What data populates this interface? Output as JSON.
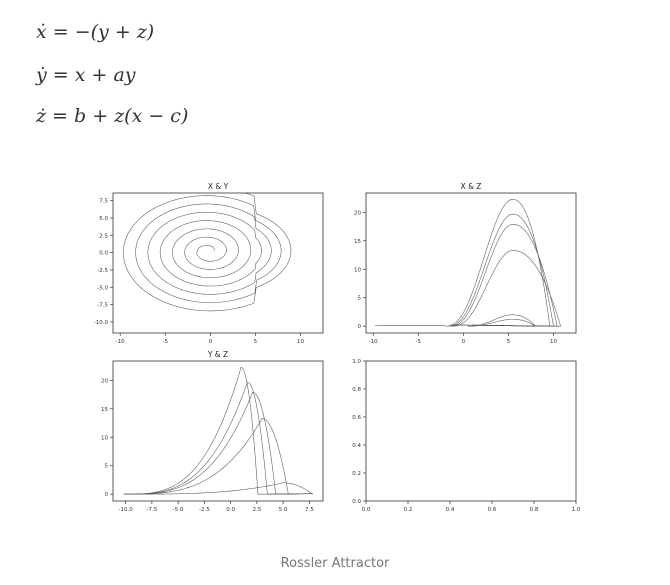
{
  "equations": [
    "ẋ = −(y + z)",
    "ẏ = x + ay",
    "ż = b + z(x − c)"
  ],
  "caption": "Rossler Attractor",
  "chart_data": [
    {
      "type": "line",
      "title": "X & Y",
      "xlim": [
        -10.8,
        12.5
      ],
      "ylim": [
        -11.6,
        8.6
      ],
      "xticks": [
        -10,
        -5,
        0,
        5,
        10
      ],
      "xtick_labels": [
        "-10",
        "-5",
        "0",
        "5",
        "10"
      ],
      "yticks": [
        7.5,
        5.0,
        2.5,
        0.0,
        -2.5,
        -5.0,
        -7.5,
        -10.0
      ],
      "ytick_labels": [
        "7.5",
        "5.0",
        "2.5",
        "0.0",
        "-2.5",
        "-5.0",
        "-7.5",
        "-10.0"
      ],
      "series": [
        {
          "pattern": "spiral",
          "x_range": [
            -9.5,
            11.7
          ],
          "y_range": [
            -10.4,
            7.3
          ]
        }
      ]
    },
    {
      "type": "line",
      "title": "X & Z",
      "xlim": [
        -10.8,
        12.5
      ],
      "ylim": [
        -1.2,
        23.4
      ],
      "xticks": [
        -10,
        -5,
        0,
        5,
        10
      ],
      "xtick_labels": [
        "-10",
        "-5",
        "0",
        "5",
        "10"
      ],
      "yticks": [
        0,
        5,
        10,
        15,
        20
      ],
      "ytick_labels": [
        "0",
        "5",
        "10",
        "15",
        "20"
      ],
      "series": [
        {
          "pattern": "loops",
          "peaks": [
            22.3,
            19.7,
            17.9,
            13.3,
            2.0,
            1.2
          ]
        }
      ]
    },
    {
      "type": "line",
      "title": "Y & Z",
      "xlim": [
        -11.2,
        8.8
      ],
      "ylim": [
        -1.2,
        23.4
      ],
      "xticks": [
        -10,
        -7.5,
        -5,
        -2.5,
        0,
        2.5,
        5,
        7.5
      ],
      "xtick_labels": [
        "-10.0",
        "-7.5",
        "-5.0",
        "-2.5",
        "0.0",
        "2.5",
        "5.0",
        "7.5"
      ],
      "yticks": [
        0,
        5,
        10,
        15,
        20
      ],
      "ytick_labels": [
        "0",
        "5",
        "10",
        "15",
        "20"
      ],
      "series": [
        {
          "pattern": "peaks",
          "peaks": [
            [
              1.0,
              22.3
            ],
            [
              1.6,
              19.7
            ],
            [
              2.1,
              17.9
            ],
            [
              3.0,
              13.3
            ],
            [
              5.0,
              2.0
            ]
          ]
        }
      ]
    },
    {
      "type": "line",
      "title": "",
      "xlim": [
        0,
        1
      ],
      "ylim": [
        0,
        1
      ],
      "xticks": [
        0,
        0.2,
        0.4,
        0.6,
        0.8,
        1.0
      ],
      "xtick_labels": [
        "0.0",
        "0.2",
        "0.4",
        "0.6",
        "0.8",
        "1.0"
      ],
      "yticks": [
        0,
        0.2,
        0.4,
        0.6,
        0.8,
        1.0
      ],
      "ytick_labels": [
        "0.0",
        "0.2",
        "0.4",
        "0.6",
        "0.8",
        "1.0"
      ],
      "series": []
    }
  ]
}
